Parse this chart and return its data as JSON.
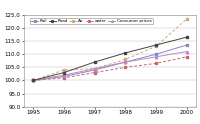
{
  "years": [
    1995,
    1996,
    1997,
    1998,
    1999,
    2000
  ],
  "rail": [
    100.0,
    101.5,
    104.0,
    107.0,
    110.0,
    113.5
  ],
  "road": [
    100.0,
    103.0,
    107.0,
    110.5,
    113.5,
    116.5
  ],
  "air": [
    100.0,
    104.0,
    104.5,
    108.0,
    113.0,
    123.5
  ],
  "water": [
    100.0,
    101.0,
    103.0,
    105.0,
    106.5,
    109.0
  ],
  "consumer_prices": [
    100.0,
    102.0,
    104.5,
    107.0,
    109.0,
    111.0
  ],
  "rail_color": "#8888bb",
  "road_color": "#444444",
  "air_color": "#ccaa77",
  "water_color": "#cc6666",
  "consumer_color": "#bb88cc",
  "ylim": [
    90.0,
    125.0
  ],
  "xlim_min": 1994.7,
  "xlim_max": 2000.3,
  "yticks": [
    90.0,
    95.0,
    100.0,
    105.0,
    110.0,
    115.0,
    120.0,
    125.0
  ],
  "legend_labels": [
    "Rail",
    "Road",
    "Air",
    "water",
    "Consumer prices"
  ]
}
